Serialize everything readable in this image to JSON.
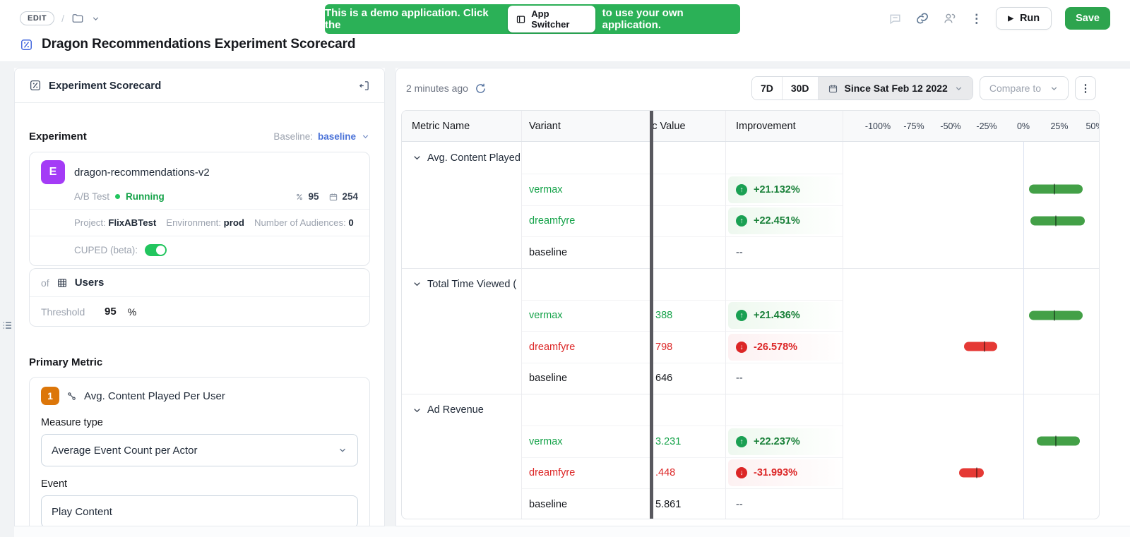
{
  "app": {
    "breadcrumb_edit": "EDIT",
    "title": "Dragon Recommendations Experiment Scorecard",
    "run_label": "Run",
    "save_label": "Save"
  },
  "banner": {
    "text_before": "This is a demo application. Click the",
    "button_label": "App Switcher",
    "text_after": "to use your own application."
  },
  "left_panel": {
    "title": "Experiment Scorecard",
    "experiment": {
      "heading": "Experiment",
      "baseline_label": "Baseline:",
      "baseline_value": "baseline",
      "badge": "E",
      "name": "dragon-recommendations-v2",
      "type": "A/B Test",
      "status": "Running",
      "stat_percent": "95",
      "stat_days": "254",
      "project_label": "Project:",
      "project_value": "FlixABTest",
      "environment_label": "Environment:",
      "environment_value": "prod",
      "audiences_label": "Number of Audiences:",
      "audiences_value": "0",
      "cuped_label": "CUPED (beta):",
      "of_label": "of",
      "unit_value": "Users",
      "threshold_label": "Threshold",
      "threshold_value": "95",
      "threshold_unit": "%"
    },
    "primary_metric": {
      "heading": "Primary Metric",
      "badge": "1",
      "name": "Avg. Content Played Per User",
      "measure_type_label": "Measure type",
      "measure_type_value": "Average Event Count per Actor",
      "event_label": "Event",
      "event_value": "Play Content"
    }
  },
  "right_panel": {
    "last_updated": "2 minutes ago",
    "range_7d": "7D",
    "range_30d": "30D",
    "date_label": "Since Sat Feb 12 2022",
    "compare_label": "Compare to",
    "table": {
      "columns": [
        "Metric Name",
        "Variant",
        "Metric Value",
        "Improvement"
      ],
      "scale_ticks": [
        "-100%",
        "-75%",
        "-50%",
        "-25%",
        "0%",
        "25%",
        "50%"
      ],
      "groups": [
        {
          "name": "Avg. Content Played",
          "rows": [
            {
              "variant": "vermax",
              "value": "",
              "improvement": "+21.132%",
              "direction": "up",
              "ci": [
                4,
                41
              ]
            },
            {
              "variant": "dreamfyre",
              "value": "",
              "improvement": "+22.451%",
              "direction": "up",
              "ci": [
                5,
                42
              ]
            },
            {
              "variant": "baseline",
              "value": "",
              "improvement": "--",
              "direction": "none"
            }
          ]
        },
        {
          "name": "Total Time Viewed (",
          "rows": [
            {
              "variant": "vermax",
              "value": "388",
              "improvement": "+21.436%",
              "direction": "up",
              "ci": [
                4,
                41
              ]
            },
            {
              "variant": "dreamfyre",
              "value": "798",
              "improvement": "-26.578%",
              "direction": "down",
              "ci": [
                -41,
                -18
              ]
            },
            {
              "variant": "baseline",
              "value": "646",
              "improvement": "--",
              "direction": "none"
            }
          ]
        },
        {
          "name": "Ad Revenue",
          "rows": [
            {
              "variant": "vermax",
              "value": "3.231",
              "improvement": "+22.237%",
              "direction": "up",
              "ci": [
                9,
                39
              ]
            },
            {
              "variant": "dreamfyre",
              "value": ".448",
              "improvement": "-31.993%",
              "direction": "down",
              "ci": [
                -44,
                -27
              ]
            },
            {
              "variant": "baseline",
              "value": "5.861",
              "improvement": "--",
              "direction": "none"
            }
          ]
        }
      ]
    }
  },
  "colors": {
    "positive_green": "#16a34a",
    "improvement_green": "#188038",
    "negative_red": "#dc2626",
    "bar_green": "#43a047",
    "bar_red": "#e53935",
    "banner_green": "#2bb157",
    "save_green": "#2da44e",
    "experiment_purple": "#a43bf6",
    "metric_orange": "#dc7609",
    "toggle_green": "#22c55e"
  }
}
